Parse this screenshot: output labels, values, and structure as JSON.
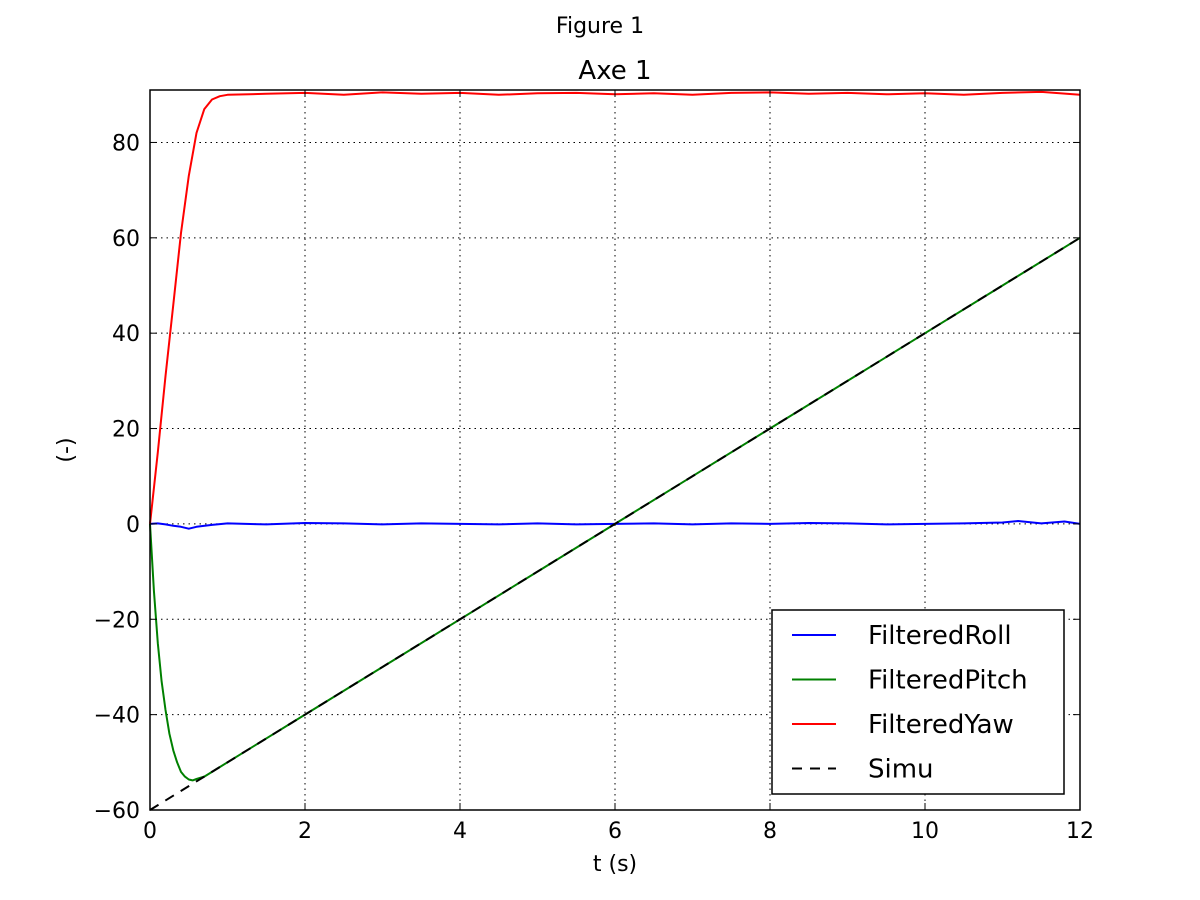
{
  "window": {
    "title": "Figure 1"
  },
  "chart_data": {
    "type": "line",
    "title": "Axe 1",
    "xlabel": "t (s)",
    "ylabel": "(-)",
    "xlim": [
      0,
      12
    ],
    "ylim": [
      -60,
      91
    ],
    "xticks": [
      0,
      2,
      4,
      6,
      8,
      10,
      12
    ],
    "yticks": [
      -60,
      -40,
      -20,
      0,
      20,
      40,
      60,
      80
    ],
    "xtick_labels": [
      "0",
      "2",
      "4",
      "6",
      "8",
      "10",
      "12"
    ],
    "ytick_labels": [
      "−60",
      "−40",
      "−20",
      "0",
      "20",
      "40",
      "60",
      "80"
    ],
    "grid": true,
    "legend_position": "lower-right",
    "series": [
      {
        "name": "FilteredRoll",
        "color": "#0000ff",
        "style": "solid",
        "x": [
          0,
          0.1,
          0.2,
          0.3,
          0.4,
          0.5,
          0.6,
          0.8,
          1.0,
          1.5,
          2.0,
          2.5,
          3.0,
          3.5,
          4.0,
          4.5,
          5.0,
          5.5,
          6.0,
          6.5,
          7.0,
          7.5,
          8.0,
          8.5,
          9.0,
          9.5,
          10.0,
          10.5,
          11.0,
          11.2,
          11.5,
          11.8,
          12.0
        ],
        "y": [
          0,
          0.1,
          -0.1,
          -0.4,
          -0.6,
          -1.0,
          -0.6,
          -0.2,
          0.1,
          -0.1,
          0.2,
          0.1,
          -0.1,
          0.1,
          0.0,
          -0.1,
          0.1,
          -0.1,
          0.0,
          0.1,
          -0.1,
          0.1,
          0.0,
          0.2,
          0.1,
          -0.1,
          0.0,
          0.1,
          0.3,
          0.6,
          0.1,
          0.5,
          0.0
        ]
      },
      {
        "name": "FilteredPitch",
        "color": "#008000",
        "style": "solid",
        "x": [
          0,
          0.05,
          0.1,
          0.15,
          0.2,
          0.25,
          0.3,
          0.35,
          0.4,
          0.45,
          0.5,
          0.55,
          0.6,
          0.7,
          0.8,
          1.0,
          2.0,
          3.0,
          4.0,
          5.0,
          6.0,
          7.0,
          8.0,
          9.0,
          10.0,
          11.0,
          12.0
        ],
        "y": [
          0,
          -14,
          -25,
          -33,
          -39,
          -44,
          -47.5,
          -50,
          -52,
          -53,
          -53.6,
          -53.8,
          -53.5,
          -53,
          -52,
          -50,
          -40,
          -30,
          -20,
          -10,
          0,
          10,
          20,
          30,
          40,
          50,
          60
        ]
      },
      {
        "name": "FilteredYaw",
        "color": "#ff0000",
        "style": "solid",
        "x": [
          0,
          0.1,
          0.2,
          0.3,
          0.4,
          0.5,
          0.6,
          0.7,
          0.8,
          0.9,
          1.0,
          1.5,
          2.0,
          2.5,
          3.0,
          3.5,
          4.0,
          4.5,
          5.0,
          5.5,
          6.0,
          6.5,
          7.0,
          7.5,
          8.0,
          8.5,
          9.0,
          9.5,
          10.0,
          10.5,
          11.0,
          11.5,
          12.0
        ],
        "y": [
          0,
          15,
          31,
          46,
          61,
          73,
          82,
          87,
          89,
          89.7,
          90,
          90.2,
          90.4,
          90.0,
          90.5,
          90.2,
          90.4,
          90.0,
          90.3,
          90.4,
          90.1,
          90.3,
          90.0,
          90.4,
          90.5,
          90.2,
          90.4,
          90.1,
          90.3,
          90.0,
          90.4,
          90.6,
          90.0
        ]
      },
      {
        "name": "Simu",
        "color": "#000000",
        "style": "dashed",
        "x": [
          0,
          12
        ],
        "y": [
          -60,
          60
        ]
      }
    ]
  }
}
